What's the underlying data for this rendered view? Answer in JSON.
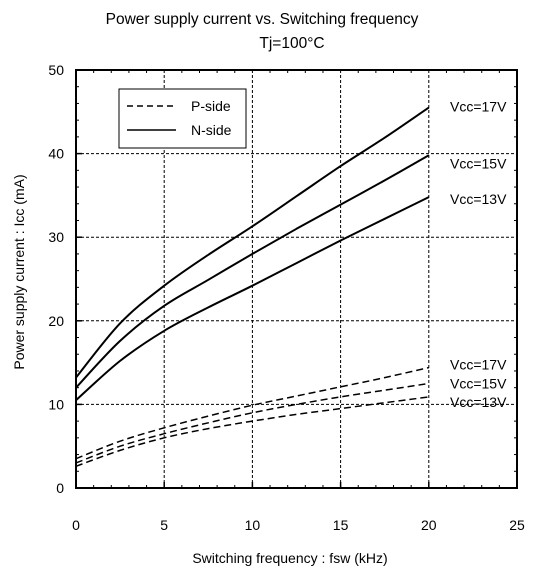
{
  "chart_data": {
    "type": "line",
    "title": "Power supply current vs. Switching frequency",
    "subtitle": "Tj=100°C",
    "xlabel": "Switching frequency : fsw  (kHz)",
    "ylabel": "Power supply current : Icc (mA)",
    "xlim": [
      0,
      25
    ],
    "ylim": [
      0,
      50
    ],
    "xticks": [
      "0",
      "5",
      "10",
      "15",
      "20",
      "25"
    ],
    "yticks": [
      "0",
      "10",
      "20",
      "30",
      "40",
      "50"
    ],
    "grid": true,
    "legend_position": "top-left",
    "legend": [
      {
        "label": "P-side",
        "style": "dashed"
      },
      {
        "label": "N-side",
        "style": "solid"
      }
    ],
    "x": [
      0,
      2.5,
      5,
      7.5,
      10,
      12.5,
      15,
      17.5,
      20
    ],
    "series": [
      {
        "group": "N-side",
        "label": "Vcc=17V",
        "style": "solid",
        "values": [
          13.2,
          19.7,
          24.2,
          27.9,
          31.3,
          34.9,
          38.5,
          41.9,
          45.5
        ]
      },
      {
        "group": "N-side",
        "label": "Vcc=15V",
        "style": "solid",
        "values": [
          12.0,
          17.6,
          21.8,
          24.9,
          28.0,
          31.0,
          33.9,
          36.8,
          39.8
        ]
      },
      {
        "group": "N-side",
        "label": "Vcc=13V",
        "style": "solid",
        "values": [
          10.5,
          15.2,
          18.8,
          21.6,
          24.2,
          26.9,
          29.6,
          32.2,
          34.8
        ]
      },
      {
        "group": "P-side",
        "label": "Vcc=17V",
        "style": "dashed",
        "values": [
          3.5,
          5.6,
          7.2,
          8.6,
          9.9,
          11.0,
          12.1,
          13.2,
          14.4
        ]
      },
      {
        "group": "P-side",
        "label": "Vcc=15V",
        "style": "dashed",
        "values": [
          3.0,
          5.0,
          6.5,
          7.8,
          9.0,
          10.0,
          10.9,
          11.7,
          12.5
        ]
      },
      {
        "group": "P-side",
        "label": "Vcc=13V",
        "style": "dashed",
        "values": [
          2.6,
          4.5,
          6.0,
          7.1,
          8.0,
          8.8,
          9.5,
          10.2,
          10.9
        ]
      }
    ],
    "line_labels": [
      {
        "text": "Vcc=17V",
        "x": 20,
        "y": 45.5
      },
      {
        "text": "Vcc=15V",
        "x": 20,
        "y": 39.8
      },
      {
        "text": "Vcc=13V",
        "x": 20,
        "y": 34.8
      },
      {
        "text": "Vcc=17V",
        "x": 20,
        "y": 14.4
      },
      {
        "text": "Vcc=15V",
        "x": 20,
        "y": 12.5
      },
      {
        "text": "Vcc=13V",
        "x": 20,
        "y": 10.9
      }
    ]
  }
}
